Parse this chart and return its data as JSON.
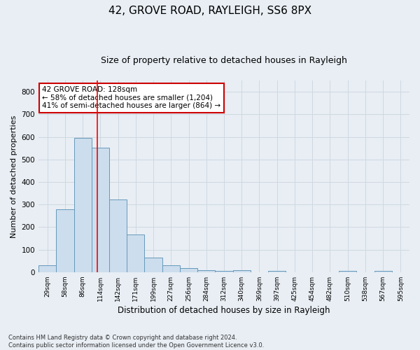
{
  "title1": "42, GROVE ROAD, RAYLEIGH, SS6 8PX",
  "title2": "Size of property relative to detached houses in Rayleigh",
  "xlabel": "Distribution of detached houses by size in Rayleigh",
  "ylabel": "Number of detached properties",
  "categories": [
    "29sqm",
    "58sqm",
    "86sqm",
    "114sqm",
    "142sqm",
    "171sqm",
    "199sqm",
    "227sqm",
    "256sqm",
    "284sqm",
    "312sqm",
    "340sqm",
    "369sqm",
    "397sqm",
    "425sqm",
    "454sqm",
    "482sqm",
    "510sqm",
    "538sqm",
    "567sqm",
    "595sqm"
  ],
  "values": [
    32,
    278,
    597,
    551,
    322,
    168,
    65,
    32,
    18,
    10,
    6,
    8,
    0,
    6,
    0,
    0,
    0,
    6,
    0,
    6,
    0
  ],
  "bar_color": "#ccdded",
  "bar_edge_color": "#6699bb",
  "grid_color": "#d0d8e0",
  "bg_color": "#e8eef4",
  "plot_bg_color": "#e8eef4",
  "annotation_line1": "42 GROVE ROAD: 128sqm",
  "annotation_line2": "← 58% of detached houses are smaller (1,204)",
  "annotation_line3": "41% of semi-detached houses are larger (864) →",
  "annotation_box_color": "#ffffff",
  "annotation_box_edge": "#cc0000",
  "vline_x_index": 2.83,
  "footnote": "Contains HM Land Registry data © Crown copyright and database right 2024.\nContains public sector information licensed under the Open Government Licence v3.0.",
  "ylim": [
    0,
    850
  ],
  "yticks": [
    0,
    100,
    200,
    300,
    400,
    500,
    600,
    700,
    800
  ],
  "title1_fontsize": 11,
  "title2_fontsize": 9,
  "ylabel_fontsize": 8,
  "xlabel_fontsize": 8.5
}
